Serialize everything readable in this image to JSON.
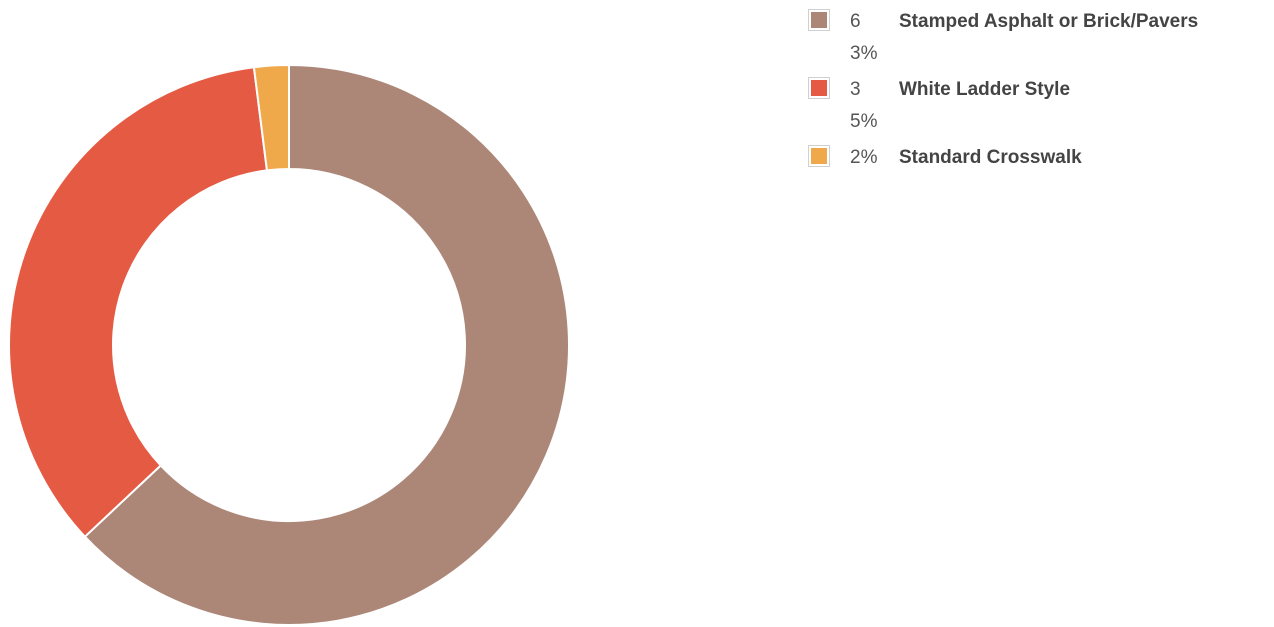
{
  "chart_data": {
    "type": "pie",
    "donut": true,
    "title": "",
    "categories": [
      "Stamped Asphalt or Brick/Pavers",
      "White Ladder Style",
      "Standard Crosswalk"
    ],
    "values": [
      63,
      35,
      2
    ],
    "colors": [
      "#ac8778",
      "#e55a43",
      "#f0a94a"
    ],
    "legend_position": "top-right",
    "legend": [
      {
        "percent": "63%",
        "label": "Stamped Asphalt or Brick/Pavers",
        "color": "#ac8778"
      },
      {
        "percent": "35%",
        "label": "White Ladder Style",
        "color": "#e55a43"
      },
      {
        "percent": "2%",
        "label": "Standard Crosswalk",
        "color": "#f0a94a"
      }
    ]
  }
}
